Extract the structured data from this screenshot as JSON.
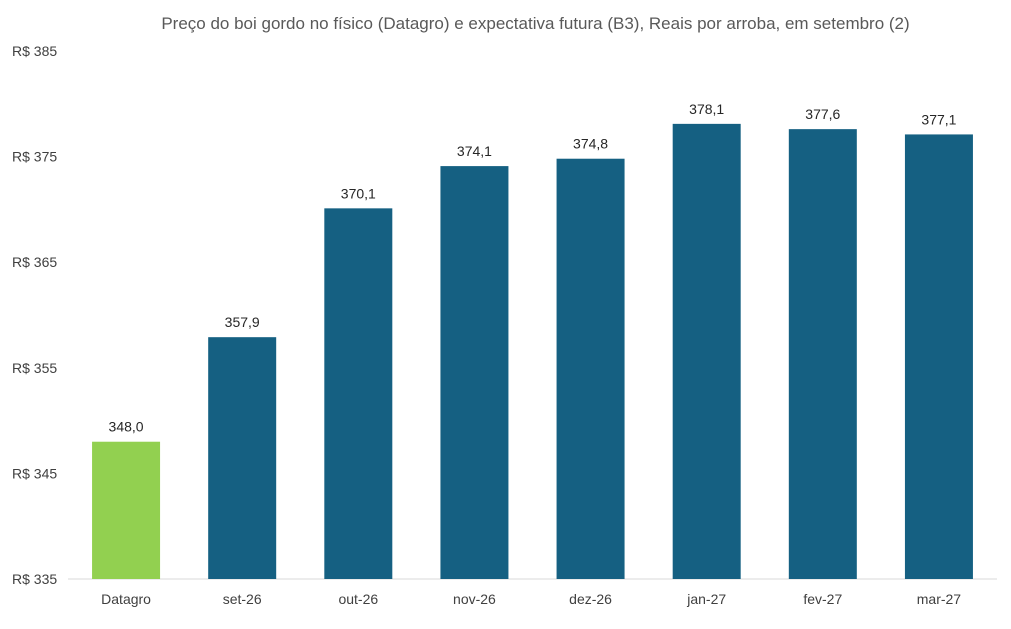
{
  "chart_data": {
    "type": "bar",
    "title": "Preço do boi gordo no físico (Datagro)  e expectativa futura (B3), Reais por arroba, em setembro (2)",
    "xlabel": "",
    "ylabel": "",
    "categories": [
      "Datagro",
      "set-26",
      "out-26",
      "nov-26",
      "dez-26",
      "jan-27",
      "fev-27",
      "mar-27"
    ],
    "values": [
      348.0,
      357.9,
      370.1,
      374.1,
      374.8,
      378.1,
      377.6,
      377.1
    ],
    "data_labels": [
      "348,0",
      "357,9",
      "370,1",
      "374,1",
      "374,8",
      "378,1",
      "377,6",
      "377,1"
    ],
    "ylim": [
      335,
      385
    ],
    "yticks": [
      335,
      345,
      355,
      365,
      375,
      385
    ],
    "ytick_labels": [
      "R$ 335",
      "R$ 345",
      "R$ 355",
      "R$ 365",
      "R$ 375",
      "R$ 385"
    ],
    "bar_colors": [
      "#92d050",
      "#156082",
      "#156082",
      "#156082",
      "#156082",
      "#156082",
      "#156082",
      "#156082"
    ],
    "grid": false,
    "legend": "none"
  }
}
